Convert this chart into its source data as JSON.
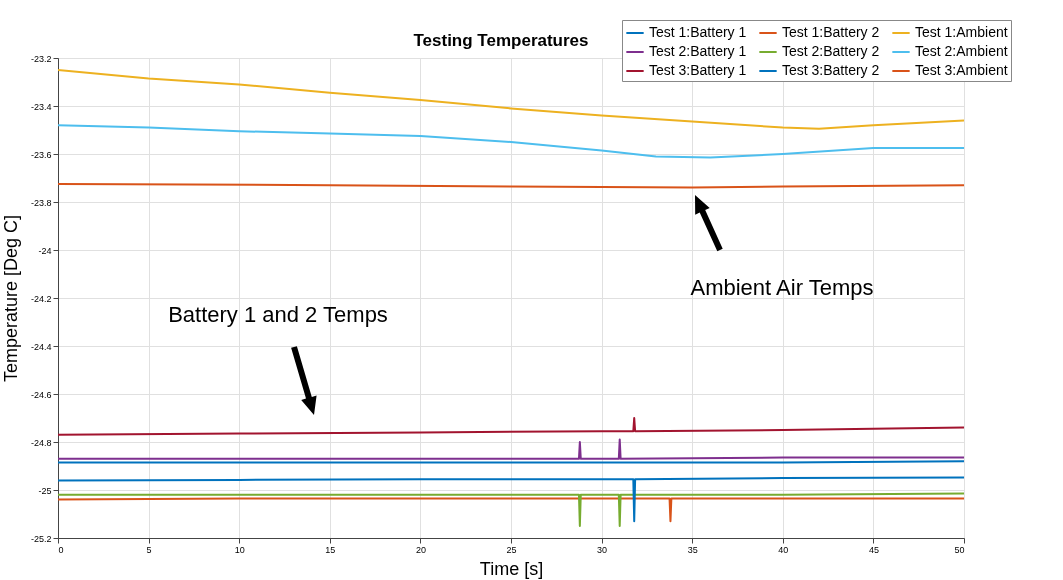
{
  "chart_data": {
    "type": "line",
    "title": "Testing Temperatures",
    "xlabel": "Time [s]",
    "ylabel": "Temperature [Deg C]",
    "xlim": [
      0,
      50
    ],
    "xticks": [
      0,
      5,
      10,
      15,
      20,
      25,
      30,
      35,
      40,
      45,
      50
    ],
    "ylim": [
      -25.2,
      -23.2
    ],
    "yticks": [
      -25.2,
      -25,
      -24.8,
      -24.6,
      -24.4,
      -24.2,
      -24,
      -23.8,
      -23.6,
      -23.4,
      -23.2
    ],
    "grid": true,
    "legend": "top right",
    "annotations": [
      "Battery 1 and 2 Temps",
      "Ambient Air Temps"
    ],
    "series": [
      {
        "name": "Test 1:Battery 1",
        "color": "#0072bd",
        "x": [
          0,
          10,
          20,
          30,
          40,
          50
        ],
        "values": [
          -24.885,
          -24.885,
          -24.885,
          -24.885,
          -24.885,
          -24.88
        ]
      },
      {
        "name": "Test 1:Battery 2",
        "color": "#d95319",
        "x": [
          0,
          10,
          20,
          30,
          33.75,
          33.8,
          33.85,
          40,
          50
        ],
        "values": [
          -25.04,
          -25.035,
          -25.035,
          -25.035,
          -25.035,
          -25.13,
          -25.035,
          -25.035,
          -25.035
        ]
      },
      {
        "name": "Test 1:Ambient",
        "color": "#edb120",
        "x": [
          0,
          5,
          10,
          15,
          20,
          25,
          30,
          35,
          40,
          42,
          45,
          50
        ],
        "values": [
          -23.25,
          -23.285,
          -23.31,
          -23.345,
          -23.375,
          -23.41,
          -23.44,
          -23.465,
          -23.49,
          -23.495,
          -23.48,
          -23.46
        ]
      },
      {
        "name": "Test 2:Battery 1",
        "color": "#7e2f8e",
        "x": [
          0,
          10,
          20,
          28.75,
          28.8,
          28.85,
          30.95,
          31,
          31.05,
          40,
          50
        ],
        "values": [
          -24.87,
          -24.87,
          -24.87,
          -24.87,
          -24.8,
          -24.87,
          -24.87,
          -24.79,
          -24.87,
          -24.865,
          -24.865
        ]
      },
      {
        "name": "Test 2:Battery 2",
        "color": "#77ac30",
        "x": [
          0,
          10,
          20,
          28.75,
          28.8,
          28.85,
          30.95,
          31,
          31.05,
          40,
          50
        ],
        "values": [
          -25.02,
          -25.02,
          -25.02,
          -25.02,
          -25.15,
          -25.02,
          -25.02,
          -25.15,
          -25.02,
          -25.02,
          -25.015
        ]
      },
      {
        "name": "Test 2:Ambient",
        "color": "#4dbeee",
        "x": [
          0,
          5,
          10,
          15,
          20,
          25,
          30,
          33,
          36,
          40,
          45,
          50
        ],
        "values": [
          -23.48,
          -23.49,
          -23.505,
          -23.515,
          -23.525,
          -23.55,
          -23.585,
          -23.61,
          -23.615,
          -23.6,
          -23.575,
          -23.575
        ]
      },
      {
        "name": "Test 3:Battery 1",
        "color": "#a2142f",
        "x": [
          0,
          10,
          20,
          30,
          31.75,
          31.8,
          31.85,
          40,
          50
        ],
        "values": [
          -24.77,
          -24.765,
          -24.76,
          -24.755,
          -24.755,
          -24.7,
          -24.755,
          -24.75,
          -24.74
        ]
      },
      {
        "name": "Test 3:Battery 2",
        "color": "#0072bd",
        "x": [
          0,
          10,
          20,
          31.75,
          31.8,
          31.85,
          40,
          50
        ],
        "values": [
          -24.96,
          -24.958,
          -24.955,
          -24.955,
          -25.13,
          -24.955,
          -24.95,
          -24.948
        ]
      },
      {
        "name": "Test 3:Ambient",
        "color": "#d95319",
        "x": [
          0,
          15,
          25,
          35,
          40,
          50
        ],
        "values": [
          -23.725,
          -23.73,
          -23.735,
          -23.74,
          -23.735,
          -23.73
        ]
      }
    ]
  }
}
